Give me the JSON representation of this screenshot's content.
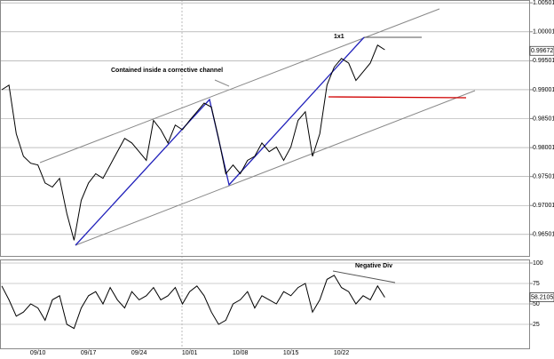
{
  "chart_data": [
    {
      "type": "line",
      "color": "#000000",
      "values": [
        0.99,
        0.9908,
        0.9824,
        0.9785,
        0.9773,
        0.977,
        0.9739,
        0.9732,
        0.9747,
        0.9686,
        0.964,
        0.9709,
        0.9739,
        0.9755,
        0.9747,
        0.977,
        0.9793,
        0.9816,
        0.9808,
        0.9793,
        0.9778,
        0.9847,
        0.9831,
        0.9808,
        0.9839,
        0.9831,
        0.9847,
        0.9862,
        0.9877,
        0.987,
        0.9816,
        0.9755,
        0.977,
        0.9755,
        0.9778,
        0.9785,
        0.9808,
        0.9793,
        0.9801,
        0.9778,
        0.9801,
        0.9847,
        0.9862,
        0.9785,
        0.9824,
        0.9908,
        0.9939,
        0.9954,
        0.9946,
        0.9916,
        0.9931,
        0.9946,
        0.9977,
        0.9969
      ],
      "ylim": [
        0.9613,
        1.0055
      ],
      "yticks": [
        0.96501,
        0.97001,
        0.97501,
        0.98001,
        0.98501,
        0.99001,
        0.99501,
        1.00001,
        1.00501
      ],
      "grid": true,
      "last_value": 0.99672,
      "annotations": [
        "Contained inside a corrective channel",
        "1x1"
      ]
    },
    {
      "type": "line",
      "color": "#000000",
      "categories": [
        null,
        null,
        null,
        null,
        null,
        "09/10",
        null,
        null,
        null,
        null,
        null,
        null,
        "09/17",
        null,
        null,
        null,
        null,
        null,
        null,
        "09/24",
        null,
        null,
        null,
        null,
        null,
        null,
        "10/01",
        null,
        null,
        null,
        null,
        null,
        null,
        "10/08",
        null,
        null,
        null,
        null,
        null,
        null,
        "10/15",
        null,
        null,
        null,
        null,
        null,
        null,
        "10/22",
        null,
        null,
        null,
        null,
        null,
        null
      ],
      "values": [
        72,
        55,
        35,
        40,
        50,
        45,
        30,
        55,
        60,
        25,
        20,
        45,
        60,
        65,
        50,
        70,
        55,
        45,
        65,
        55,
        60,
        70,
        55,
        60,
        70,
        50,
        65,
        72,
        60,
        40,
        25,
        30,
        50,
        55,
        65,
        45,
        60,
        55,
        50,
        65,
        60,
        70,
        75,
        40,
        55,
        80,
        85,
        70,
        65,
        50,
        60,
        55,
        72,
        58
      ],
      "ylim": [
        0,
        100
      ],
      "yticks": [
        25,
        50,
        75,
        100
      ],
      "grid": true,
      "last_value": 58.21053,
      "annotations": [
        "Negative Div"
      ]
    }
  ]
}
